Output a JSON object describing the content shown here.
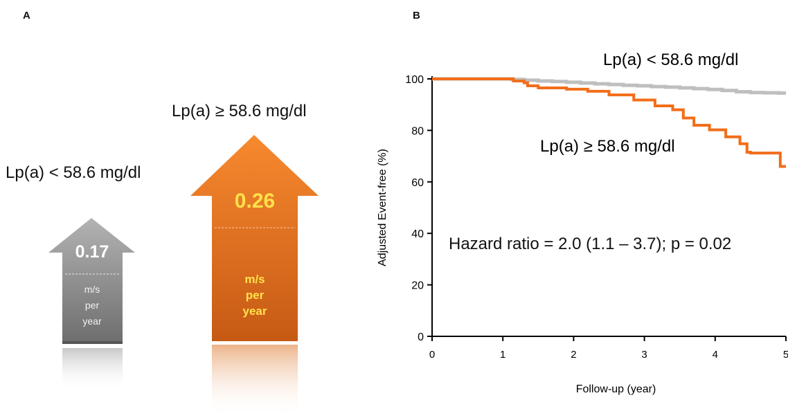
{
  "panel_a": {
    "label": "A",
    "low": {
      "group_label": "Lp(a) < 58.6 mg/dl",
      "value": "0.17",
      "unit_lines": [
        "m/s",
        "per",
        "year"
      ],
      "color_top": "#b3b3b3",
      "color_bottom": "#6e6e6e",
      "value_color": "#ffffff",
      "unit_color": "#f2f2f2"
    },
    "high": {
      "group_label": "Lp(a) ≥ 58.6 mg/dl",
      "value": "0.26",
      "unit_lines": [
        "m/s",
        "per",
        "year"
      ],
      "color_top": "#f7892f",
      "color_bottom": "#c65a14",
      "value_color": "#ffe24a",
      "unit_color": "#ffe24a"
    }
  },
  "panel_b": {
    "label": "B",
    "annotation": "Hazard ratio  = 2.0 (1.1 – 3.7); p = 0.02"
  },
  "chart_data": {
    "type": "line",
    "xlabel": "Follow-up (year)",
    "ylabel": "Adjusted Event-free (%)",
    "xlim": [
      0,
      5
    ],
    "ylim": [
      0,
      100
    ],
    "xticks": [
      0,
      1,
      2,
      3,
      4,
      5
    ],
    "yticks": [
      0,
      20,
      40,
      60,
      80,
      100
    ],
    "step": true,
    "series": [
      {
        "name": "Lp(a) < 58.6 mg/dl",
        "color": "#bfbfbf",
        "x": [
          0,
          1.12,
          1.3,
          1.5,
          1.7,
          1.9,
          2.1,
          2.3,
          2.5,
          2.7,
          2.9,
          3.1,
          3.3,
          3.5,
          3.7,
          3.9,
          4.1,
          4.3,
          4.5,
          4.7,
          4.9,
          5.0
        ],
        "y": [
          100,
          99.8,
          99.5,
          99.2,
          99.0,
          98.7,
          98.4,
          98.1,
          97.8,
          97.5,
          97.3,
          97.0,
          96.8,
          96.5,
          96.2,
          95.9,
          95.5,
          95.0,
          94.7,
          94.6,
          94.5,
          94.5
        ]
      },
      {
        "name": "Lp(a) ≥ 58.6 mg/dl",
        "color": "#f26d1a",
        "x": [
          0,
          1.15,
          1.3,
          1.35,
          1.5,
          1.9,
          2.2,
          2.5,
          2.85,
          3.15,
          3.4,
          3.55,
          3.7,
          3.92,
          4.15,
          4.35,
          4.45,
          4.5,
          4.92,
          5.0
        ],
        "y": [
          100,
          99.2,
          98.5,
          97.3,
          96.5,
          96.0,
          95.2,
          93.8,
          91.8,
          89.5,
          88.0,
          84.8,
          82.0,
          80.2,
          77.5,
          74.8,
          71.5,
          71.2,
          66.0,
          66.0
        ]
      }
    ]
  }
}
